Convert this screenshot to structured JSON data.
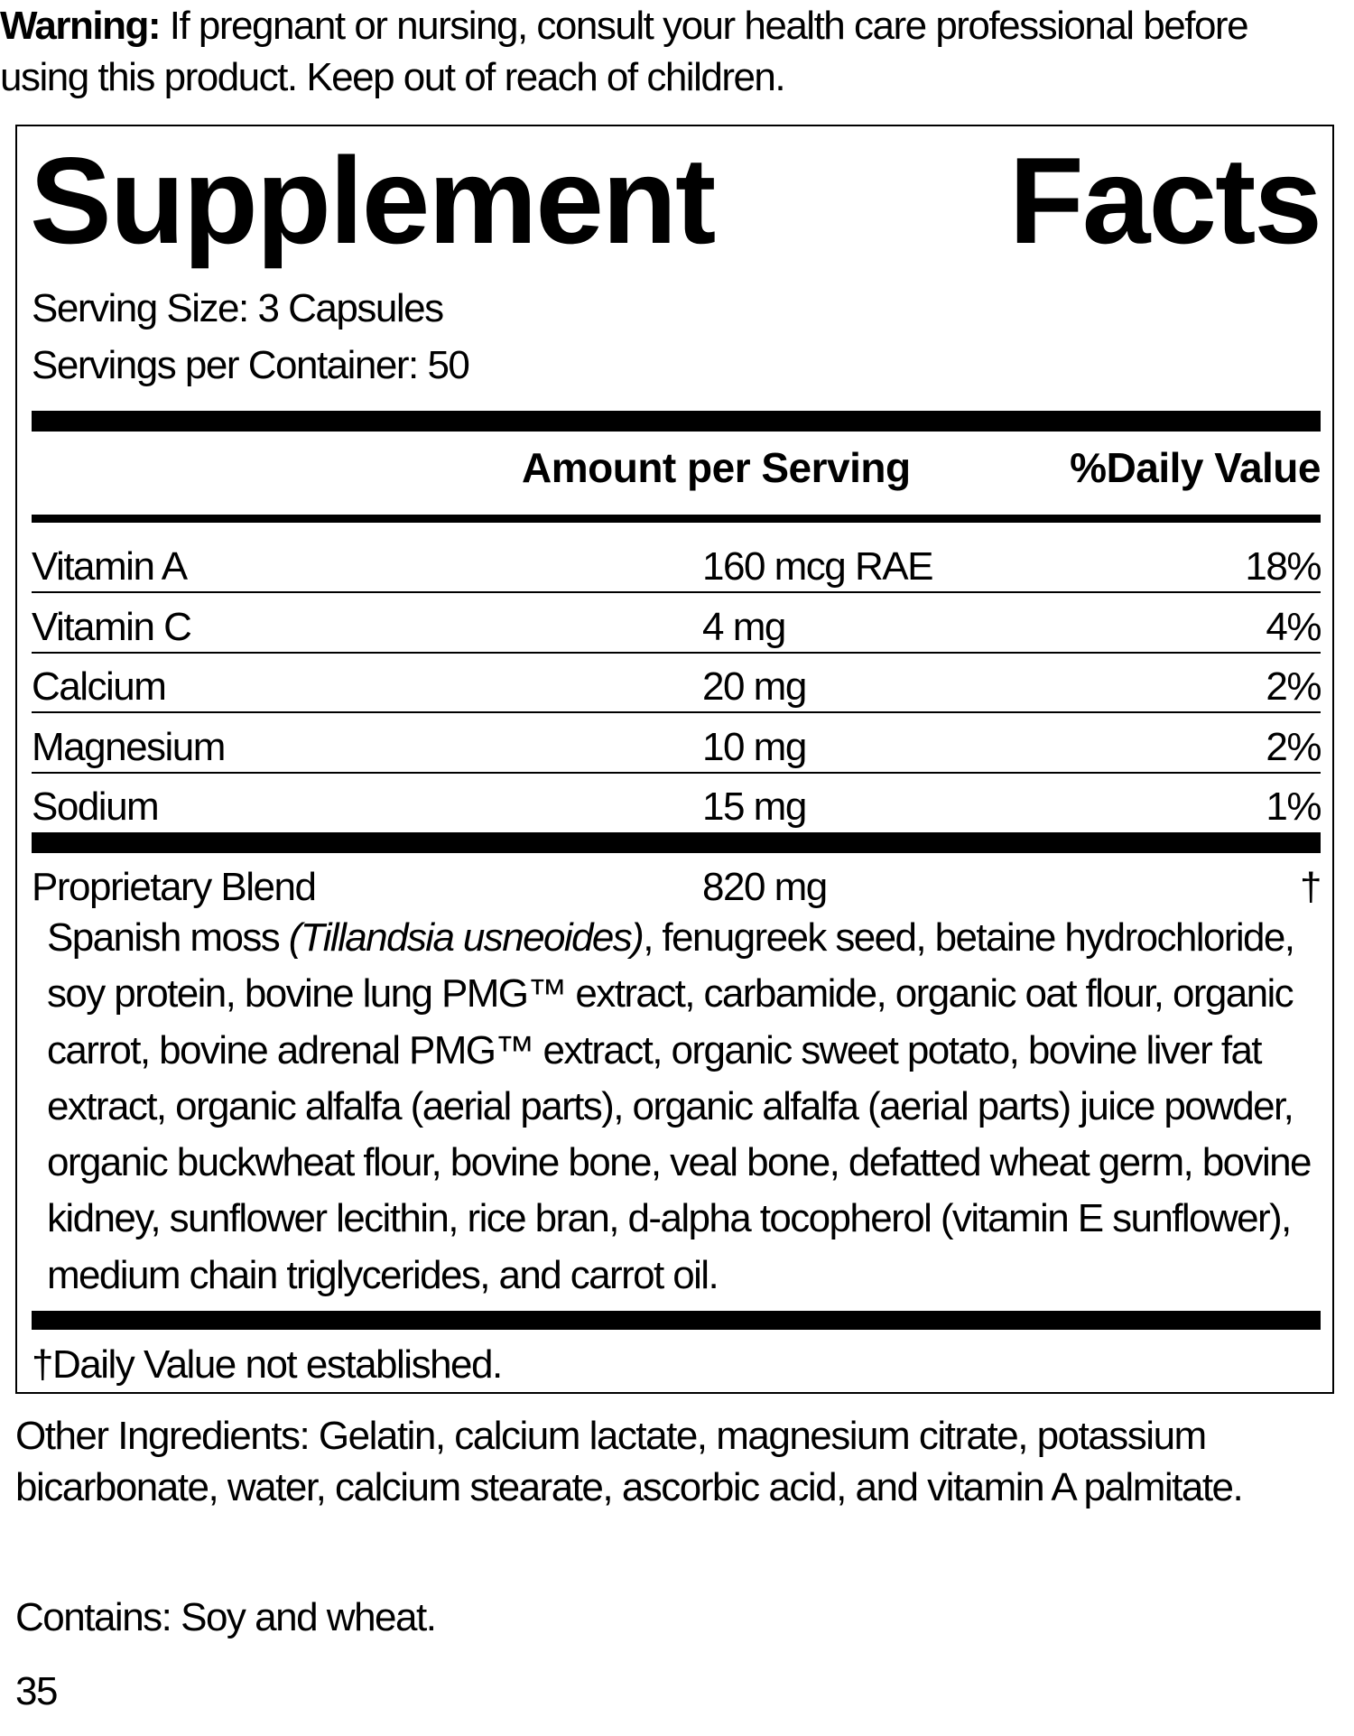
{
  "warning": {
    "label": "Warning:",
    "text": " If pregnant or nursing, consult your health care professional before using this product. Keep out of reach of children."
  },
  "facts": {
    "title_word1": "Supplement",
    "title_word2": "Facts",
    "serving_size": "Serving Size: 3 Capsules",
    "servings_per_container": "Servings per Container: 50",
    "header_amount": "Amount per Serving",
    "header_dv": "%Daily Value",
    "rows": [
      {
        "name": "Vitamin A",
        "amount": "160 mcg RAE",
        "dv": "18%"
      },
      {
        "name": "Vitamin C",
        "amount": "4 mg",
        "dv": "4%"
      },
      {
        "name": "Calcium",
        "amount": "20 mg",
        "dv": "2%"
      },
      {
        "name": "Magnesium",
        "amount": "10 mg",
        "dv": "2%"
      },
      {
        "name": "Sodium",
        "amount": "15 mg",
        "dv": "1%"
      }
    ],
    "blend": {
      "name": "Proprietary Blend",
      "amount": "820 mg",
      "dv": "†",
      "ingredients_pre": "Spanish moss ",
      "ingredients_italic": "(Tillandsia usneoides)",
      "ingredients_post": ", fenugreek seed, betaine hydrochloride, soy protein, bovine lung PMG™ extract, carbamide, organic oat flour, organic carrot, bovine adrenal PMG™ extract, organic sweet potato, bovine liver fat extract, organic alfalfa (aerial parts), organic alfalfa (aerial parts) juice powder, organic buckwheat flour, bovine bone, veal bone, defatted wheat germ, bovine kidney, sunflower lecithin, rice bran, d-alpha tocopherol (vitamin E sunflower), medium chain triglycerides, and carrot oil."
    },
    "footnote": "†Daily Value not established."
  },
  "other_ingredients": "Other Ingredients: Gelatin, calcium lactate, magnesium citrate, potassium bicarbonate, water, calcium stearate, ascorbic acid, and vitamin A palmitate.",
  "contains": "Contains: Soy and wheat.",
  "page_number": "35"
}
